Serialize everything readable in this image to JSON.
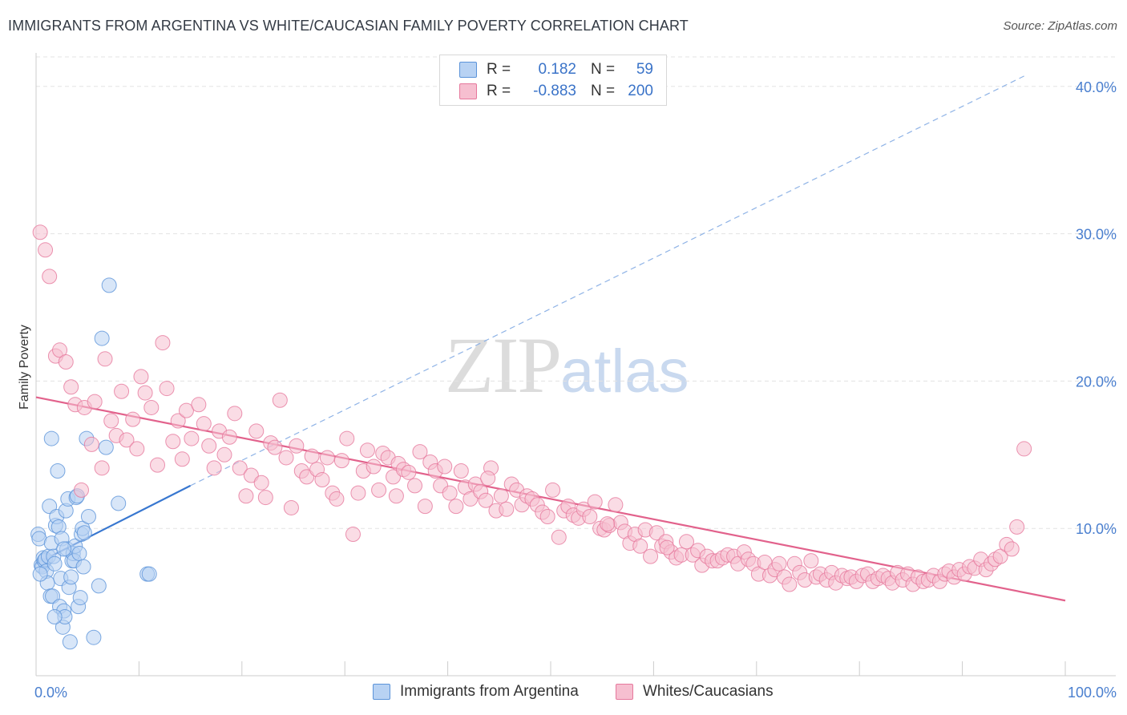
{
  "title": "IMMIGRANTS FROM ARGENTINA VS WHITE/CAUCASIAN FAMILY POVERTY CORRELATION CHART",
  "source": "Source: ZipAtlas.com",
  "watermark": {
    "zip": "ZIP",
    "atlas": "atlas"
  },
  "legend": {
    "r_label": "R =",
    "n_label": "N =",
    "series1": {
      "r": "0.182",
      "n": "59"
    },
    "series2": {
      "r": "-0.883",
      "n": "200"
    }
  },
  "chart_data": {
    "type": "scatter",
    "title": "IMMIGRANTS FROM ARGENTINA VS WHITE/CAUCASIAN FAMILY POVERTY CORRELATION CHART",
    "xlabel": "",
    "ylabel": "Family Poverty",
    "xlim": [
      0,
      100
    ],
    "ylim": [
      0,
      42
    ],
    "x_tick_labels": [
      "0.0%",
      "100.0%"
    ],
    "y_ticks": [
      10,
      20,
      30,
      40
    ],
    "y_tick_labels": [
      "10.0%",
      "20.0%",
      "30.0%",
      "40.0%"
    ],
    "legend_position": "top-center",
    "grid": true,
    "series": [
      {
        "name": "Immigrants from Argentina",
        "color": "#5b93d9",
        "fill": "#b8d2f3",
        "r": 0.182,
        "n": 59,
        "trend_solid": [
          [
            0,
            7.6
          ],
          [
            15,
            12.9
          ]
        ],
        "trend_dashed": [
          [
            15,
            12.9
          ],
          [
            96,
            40.7
          ]
        ],
        "points": [
          [
            0.2,
            9.6
          ],
          [
            0.3,
            9.3
          ],
          [
            0.5,
            7.5
          ],
          [
            0.6,
            7.4
          ],
          [
            0.7,
            8.0
          ],
          [
            0.8,
            7.8
          ],
          [
            0.9,
            7.9
          ],
          [
            1.0,
            7.1
          ],
          [
            1.1,
            6.3
          ],
          [
            1.2,
            8.1
          ],
          [
            1.3,
            11.5
          ],
          [
            1.4,
            5.4
          ],
          [
            1.5,
            9.0
          ],
          [
            1.6,
            5.4
          ],
          [
            1.7,
            8.1
          ],
          [
            1.8,
            7.6
          ],
          [
            1.9,
            10.2
          ],
          [
            2.0,
            10.8
          ],
          [
            2.1,
            13.9
          ],
          [
            2.2,
            10.1
          ],
          [
            2.3,
            4.7
          ],
          [
            2.4,
            6.6
          ],
          [
            2.5,
            9.3
          ],
          [
            2.6,
            3.3
          ],
          [
            2.7,
            4.4
          ],
          [
            2.8,
            4.0
          ],
          [
            2.9,
            11.2
          ],
          [
            3.0,
            8.6
          ],
          [
            3.1,
            12.0
          ],
          [
            3.2,
            6.0
          ],
          [
            3.3,
            2.3
          ],
          [
            3.4,
            6.7
          ],
          [
            3.5,
            7.8
          ],
          [
            3.6,
            8.3
          ],
          [
            3.7,
            7.8
          ],
          [
            3.8,
            8.8
          ],
          [
            3.9,
            12.1
          ],
          [
            4.0,
            12.2
          ],
          [
            4.1,
            4.7
          ],
          [
            4.2,
            8.3
          ],
          [
            4.3,
            5.3
          ],
          [
            4.4,
            9.6
          ],
          [
            4.5,
            10.0
          ],
          [
            4.6,
            7.4
          ],
          [
            4.7,
            9.7
          ],
          [
            4.9,
            16.1
          ],
          [
            5.1,
            10.8
          ],
          [
            5.6,
            2.6
          ],
          [
            6.1,
            6.1
          ],
          [
            6.4,
            22.9
          ],
          [
            6.8,
            15.5
          ],
          [
            7.1,
            26.5
          ],
          [
            8.0,
            11.7
          ],
          [
            10.8,
            6.9
          ],
          [
            11.0,
            6.9
          ],
          [
            1.5,
            16.1
          ],
          [
            2.7,
            8.6
          ],
          [
            1.8,
            4.0
          ],
          [
            0.4,
            6.9
          ]
        ]
      },
      {
        "name": "Whites/Caucasians",
        "color": "#e6789c",
        "fill": "#f6bfd0",
        "r": -0.883,
        "n": 200,
        "trend": [
          [
            0,
            18.9
          ],
          [
            100,
            5.1
          ]
        ],
        "points": [
          [
            0.4,
            30.1
          ],
          [
            0.9,
            28.9
          ],
          [
            1.3,
            27.1
          ],
          [
            1.9,
            21.7
          ],
          [
            2.3,
            22.1
          ],
          [
            2.9,
            21.3
          ],
          [
            3.4,
            19.6
          ],
          [
            3.8,
            18.4
          ],
          [
            4.4,
            12.6
          ],
          [
            4.7,
            18.2
          ],
          [
            5.4,
            15.7
          ],
          [
            5.7,
            18.6
          ],
          [
            6.4,
            14.1
          ],
          [
            6.7,
            21.5
          ],
          [
            7.3,
            17.3
          ],
          [
            7.8,
            16.3
          ],
          [
            8.3,
            19.3
          ],
          [
            8.8,
            16.0
          ],
          [
            9.4,
            17.4
          ],
          [
            9.8,
            15.4
          ],
          [
            10.2,
            20.3
          ],
          [
            10.6,
            19.2
          ],
          [
            11.2,
            18.2
          ],
          [
            11.8,
            14.3
          ],
          [
            12.3,
            22.6
          ],
          [
            12.7,
            19.5
          ],
          [
            13.3,
            15.9
          ],
          [
            13.8,
            17.3
          ],
          [
            14.2,
            14.7
          ],
          [
            14.6,
            18.0
          ],
          [
            15.1,
            16.1
          ],
          [
            15.8,
            18.4
          ],
          [
            16.3,
            17.1
          ],
          [
            16.8,
            15.6
          ],
          [
            17.3,
            14.1
          ],
          [
            17.8,
            16.6
          ],
          [
            18.3,
            15.0
          ],
          [
            18.8,
            16.2
          ],
          [
            19.3,
            17.8
          ],
          [
            19.8,
            14.1
          ],
          [
            20.4,
            12.2
          ],
          [
            20.9,
            13.6
          ],
          [
            21.4,
            16.6
          ],
          [
            21.9,
            13.1
          ],
          [
            22.3,
            12.1
          ],
          [
            22.8,
            15.8
          ],
          [
            23.2,
            15.5
          ],
          [
            23.7,
            18.7
          ],
          [
            24.3,
            14.8
          ],
          [
            24.8,
            11.4
          ],
          [
            25.3,
            15.6
          ],
          [
            25.8,
            13.9
          ],
          [
            26.3,
            13.5
          ],
          [
            26.8,
            14.9
          ],
          [
            27.3,
            14.0
          ],
          [
            27.8,
            13.3
          ],
          [
            28.3,
            14.8
          ],
          [
            28.8,
            12.4
          ],
          [
            29.2,
            12.0
          ],
          [
            29.7,
            14.6
          ],
          [
            30.2,
            16.1
          ],
          [
            30.8,
            9.6
          ],
          [
            31.3,
            12.4
          ],
          [
            31.8,
            13.9
          ],
          [
            32.2,
            15.3
          ],
          [
            32.8,
            14.2
          ],
          [
            33.3,
            12.6
          ],
          [
            33.7,
            15.1
          ],
          [
            34.2,
            14.8
          ],
          [
            34.7,
            13.5
          ],
          [
            35.2,
            14.4
          ],
          [
            35.7,
            14.0
          ],
          [
            36.2,
            13.8
          ],
          [
            36.8,
            12.9
          ],
          [
            37.3,
            15.2
          ],
          [
            37.8,
            11.5
          ],
          [
            38.3,
            14.5
          ],
          [
            38.8,
            13.9
          ],
          [
            39.3,
            12.9
          ],
          [
            39.7,
            14.2
          ],
          [
            40.2,
            12.4
          ],
          [
            40.8,
            11.5
          ],
          [
            41.3,
            13.9
          ],
          [
            41.7,
            12.8
          ],
          [
            42.2,
            12.0
          ],
          [
            42.7,
            13.0
          ],
          [
            43.2,
            12.5
          ],
          [
            43.7,
            11.9
          ],
          [
            44.2,
            14.1
          ],
          [
            44.7,
            11.2
          ],
          [
            45.2,
            12.2
          ],
          [
            45.7,
            11.3
          ],
          [
            46.2,
            13.0
          ],
          [
            46.7,
            12.6
          ],
          [
            47.2,
            11.6
          ],
          [
            47.7,
            12.2
          ],
          [
            48.2,
            12.0
          ],
          [
            48.7,
            11.6
          ],
          [
            49.2,
            11.1
          ],
          [
            49.7,
            10.8
          ],
          [
            50.2,
            12.6
          ],
          [
            50.8,
            9.4
          ],
          [
            51.3,
            11.2
          ],
          [
            51.7,
            11.5
          ],
          [
            52.2,
            10.9
          ],
          [
            52.7,
            10.7
          ],
          [
            53.2,
            11.3
          ],
          [
            53.8,
            10.8
          ],
          [
            54.3,
            11.8
          ],
          [
            54.8,
            10.0
          ],
          [
            55.2,
            9.9
          ],
          [
            55.7,
            10.2
          ],
          [
            56.3,
            11.6
          ],
          [
            56.8,
            10.4
          ],
          [
            57.2,
            9.8
          ],
          [
            57.7,
            9.0
          ],
          [
            58.2,
            9.6
          ],
          [
            58.7,
            8.8
          ],
          [
            59.2,
            9.9
          ],
          [
            59.7,
            8.1
          ],
          [
            60.3,
            9.7
          ],
          [
            60.8,
            8.8
          ],
          [
            61.2,
            9.1
          ],
          [
            61.7,
            8.4
          ],
          [
            62.2,
            8.0
          ],
          [
            62.7,
            8.2
          ],
          [
            63.2,
            9.1
          ],
          [
            63.8,
            8.2
          ],
          [
            64.3,
            8.5
          ],
          [
            64.7,
            7.5
          ],
          [
            65.2,
            8.1
          ],
          [
            65.7,
            7.8
          ],
          [
            66.2,
            7.8
          ],
          [
            66.7,
            8.0
          ],
          [
            67.2,
            8.2
          ],
          [
            67.8,
            8.1
          ],
          [
            68.2,
            7.6
          ],
          [
            68.8,
            8.4
          ],
          [
            69.2,
            7.9
          ],
          [
            69.7,
            7.6
          ],
          [
            70.2,
            6.9
          ],
          [
            70.8,
            7.7
          ],
          [
            71.3,
            6.8
          ],
          [
            71.8,
            7.2
          ],
          [
            72.2,
            7.6
          ],
          [
            72.7,
            6.7
          ],
          [
            73.2,
            6.2
          ],
          [
            73.7,
            7.6
          ],
          [
            74.2,
            7.0
          ],
          [
            74.7,
            6.5
          ],
          [
            75.3,
            7.8
          ],
          [
            75.8,
            6.7
          ],
          [
            76.2,
            6.9
          ],
          [
            76.8,
            6.5
          ],
          [
            77.3,
            7.0
          ],
          [
            77.7,
            6.3
          ],
          [
            78.3,
            6.8
          ],
          [
            78.8,
            6.6
          ],
          [
            79.2,
            6.7
          ],
          [
            79.7,
            6.4
          ],
          [
            80.3,
            6.8
          ],
          [
            80.8,
            6.9
          ],
          [
            81.3,
            6.4
          ],
          [
            81.8,
            6.6
          ],
          [
            82.3,
            6.8
          ],
          [
            82.8,
            6.6
          ],
          [
            83.2,
            6.3
          ],
          [
            83.7,
            7.0
          ],
          [
            84.2,
            6.5
          ],
          [
            84.7,
            6.9
          ],
          [
            85.2,
            6.2
          ],
          [
            85.7,
            6.7
          ],
          [
            86.2,
            6.4
          ],
          [
            86.7,
            6.5
          ],
          [
            87.2,
            6.8
          ],
          [
            87.8,
            6.4
          ],
          [
            88.3,
            6.9
          ],
          [
            88.7,
            7.1
          ],
          [
            89.2,
            6.7
          ],
          [
            89.7,
            7.2
          ],
          [
            90.2,
            6.9
          ],
          [
            90.7,
            7.4
          ],
          [
            91.2,
            7.3
          ],
          [
            91.8,
            7.9
          ],
          [
            92.3,
            7.2
          ],
          [
            92.8,
            7.6
          ],
          [
            93.2,
            7.9
          ],
          [
            93.7,
            8.1
          ],
          [
            94.3,
            8.9
          ],
          [
            94.8,
            8.6
          ],
          [
            95.3,
            10.1
          ],
          [
            96.0,
            15.4
          ],
          [
            55.5,
            10.3
          ],
          [
            43.9,
            13.4
          ],
          [
            61.3,
            8.7
          ],
          [
            35.0,
            12.2
          ]
        ]
      }
    ]
  },
  "bottom_legend": {
    "series1": "Immigrants from Argentina",
    "series2": "Whites/Caucasians"
  }
}
